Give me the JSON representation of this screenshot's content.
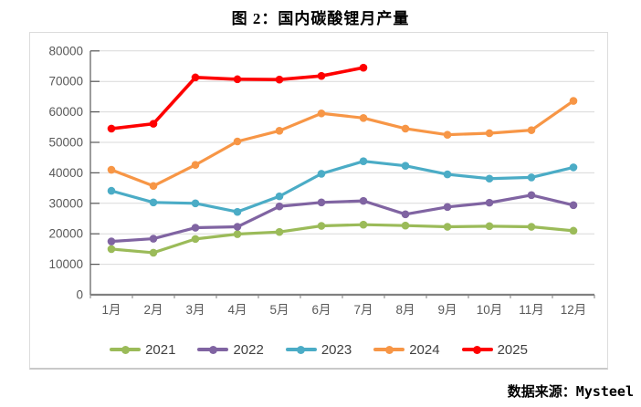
{
  "title": "图 2：国内碳酸锂月产量",
  "source_note": "数据来源：Mysteel",
  "style": {
    "grid_color": "#d9d9d9",
    "axis_line_color": "#808080",
    "yaxis_line_color": "#595959",
    "axis_text_color": "#595959",
    "legend_text_color": "#404040",
    "frame_border_color": "#dcdcdc"
  },
  "chart_data": {
    "type": "line",
    "title": "图 2：国内碳酸锂月产量",
    "categories": [
      "1月",
      "2月",
      "3月",
      "4月",
      "5月",
      "6月",
      "7月",
      "8月",
      "9月",
      "10月",
      "11月",
      "12月"
    ],
    "series": [
      {
        "name": "2021",
        "color": "#9bbb59",
        "values": [
          15000,
          13800,
          18300,
          19900,
          20600,
          22600,
          23000,
          22700,
          22300,
          22500,
          22300,
          21000
        ]
      },
      {
        "name": "2022",
        "color": "#8064a2",
        "values": [
          17500,
          18400,
          22000,
          22300,
          29000,
          30300,
          30800,
          26400,
          28800,
          30200,
          32700,
          29400
        ]
      },
      {
        "name": "2023",
        "color": "#4bacc6",
        "values": [
          34100,
          30300,
          30000,
          27200,
          32300,
          39700,
          43800,
          42300,
          39500,
          38100,
          38500,
          41800
        ]
      },
      {
        "name": "2024",
        "color": "#f79646",
        "values": [
          41000,
          35700,
          42600,
          50300,
          53800,
          59500,
          58000,
          54500,
          52500,
          53000,
          54000,
          63600
        ]
      },
      {
        "name": "2025",
        "color": "#fe0000",
        "values": [
          54500,
          56100,
          71300,
          70700,
          70600,
          71800,
          74500
        ]
      }
    ],
    "ylim": [
      0,
      80000
    ],
    "ytick_step": 10000,
    "y_ticks": [
      0,
      10000,
      20000,
      30000,
      40000,
      50000,
      60000,
      70000,
      80000
    ],
    "grid": true,
    "legend_position": "bottom",
    "marker": "circle"
  }
}
